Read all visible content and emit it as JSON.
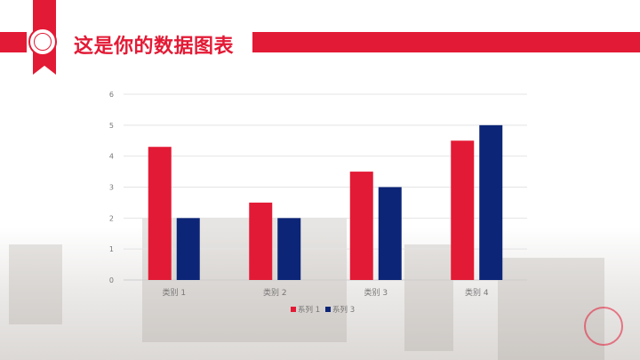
{
  "header": {
    "title": "这是你的数据图表",
    "accent_color": "#e31a35"
  },
  "chart_data": {
    "type": "bar",
    "title": "",
    "xlabel": "",
    "ylabel": "",
    "categories": [
      "类别 1",
      "类别 2",
      "类别 3",
      "类别 4"
    ],
    "series": [
      {
        "name": "系列 1",
        "color": "#e31a35",
        "values": [
          4.3,
          2.5,
          3.5,
          4.5
        ]
      },
      {
        "name": "系列 3",
        "color": "#0c2577",
        "values": [
          2,
          2,
          3,
          5
        ]
      }
    ],
    "ylim": [
      0,
      6
    ],
    "yticks": [
      0,
      1,
      2,
      3,
      4,
      5,
      6
    ],
    "grid": true,
    "legend": "bottom"
  }
}
